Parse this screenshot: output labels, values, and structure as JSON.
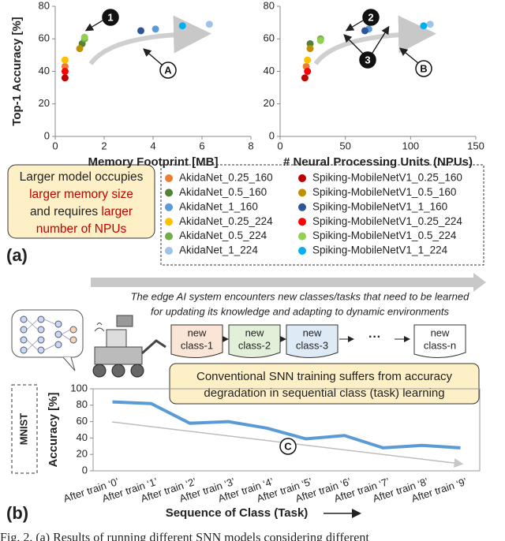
{
  "chart_data": [
    {
      "type": "scatter",
      "ylabel": "Top-1 Accuracy [%]",
      "xlabel": "Memory Footprint [MB]",
      "xlim": [
        0,
        8
      ],
      "xticks": [
        0,
        2,
        4,
        6,
        8
      ],
      "ylim": [
        0,
        80
      ],
      "yticks": [
        0,
        20,
        40,
        60,
        80
      ],
      "annotations": [
        "1",
        "A"
      ],
      "series": [
        {
          "name": "AkidaNet_0.25_160",
          "color": "#ed7d31",
          "x": [
            0.4
          ],
          "values": [
            43
          ]
        },
        {
          "name": "AkidaNet_0.5_160",
          "color": "#548235",
          "x": [
            1.1
          ],
          "values": [
            57
          ]
        },
        {
          "name": "AkidaNet_1_160",
          "color": "#5b9bd5",
          "x": [
            4.1
          ],
          "values": [
            66
          ]
        },
        {
          "name": "AkidaNet_0.25_224",
          "color": "#ffc000",
          "x": [
            0.4
          ],
          "values": [
            47
          ]
        },
        {
          "name": "AkidaNet_0.5_224",
          "color": "#70ad47",
          "x": [
            1.2
          ],
          "values": [
            60
          ]
        },
        {
          "name": "AkidaNet_1_224",
          "color": "#9dc3e6",
          "x": [
            6.3
          ],
          "values": [
            69
          ]
        },
        {
          "name": "Spiking-MobileNetV1_0.25_160",
          "color": "#c00000",
          "x": [
            0.4
          ],
          "values": [
            36
          ]
        },
        {
          "name": "Spiking-MobileNetV1_0.5_160",
          "color": "#bf9000",
          "x": [
            1.0
          ],
          "values": [
            54
          ]
        },
        {
          "name": "Spiking-MobileNetV1_1_160",
          "color": "#2f5597",
          "x": [
            3.5
          ],
          "values": [
            65
          ]
        },
        {
          "name": "Spiking-MobileNetV1_0.25_224",
          "color": "#ff0000",
          "x": [
            0.4
          ],
          "values": [
            40
          ]
        },
        {
          "name": "Spiking-MobileNetV1_0.5_224",
          "color": "#92d050",
          "x": [
            1.2
          ],
          "values": [
            61
          ]
        },
        {
          "name": "Spiking-MobileNetV1_1_224",
          "color": "#00b0f0",
          "x": [
            5.2
          ],
          "values": [
            68
          ]
        }
      ]
    },
    {
      "type": "scatter",
      "xlabel": "# Neural Processing Units (NPUs)",
      "xlim": [
        0,
        150
      ],
      "xticks": [
        0,
        50,
        100,
        150
      ],
      "ylim": [
        0,
        80
      ],
      "yticks": [
        0,
        20,
        40,
        60,
        80
      ],
      "annotations": [
        "2",
        "3",
        "B"
      ],
      "series": [
        {
          "x": [
            20
          ],
          "values": [
            43
          ]
        },
        {
          "x": [
            23
          ],
          "values": [
            57
          ]
        },
        {
          "x": [
            68
          ],
          "values": [
            66
          ]
        },
        {
          "x": [
            21
          ],
          "values": [
            47
          ]
        },
        {
          "x": [
            31
          ],
          "values": [
            60
          ]
        },
        {
          "x": [
            115
          ],
          "values": [
            69
          ]
        },
        {
          "x": [
            19
          ],
          "values": [
            36
          ]
        },
        {
          "x": [
            23
          ],
          "values": [
            54
          ]
        },
        {
          "x": [
            65
          ],
          "values": [
            65
          ]
        },
        {
          "x": [
            21
          ],
          "values": [
            40
          ]
        },
        {
          "x": [
            31
          ],
          "values": [
            59
          ]
        },
        {
          "x": [
            110
          ],
          "values": [
            68
          ]
        }
      ]
    },
    {
      "type": "line",
      "ylabel": "Accuracy [%]",
      "xlabel": "Sequence of Class (Task)",
      "ylim": [
        0,
        100
      ],
      "yticks": [
        0,
        20,
        40,
        60,
        80,
        100
      ],
      "categories": [
        "After train ‘0’",
        "After train ‘1’",
        "After train ‘2’",
        "After train ‘3’",
        "After train ‘4’",
        "After train ‘5’",
        "After train ‘6’",
        "After train ‘7’",
        "After train ‘8’",
        "After train ‘9’"
      ],
      "annotations": [
        "C"
      ],
      "series": [
        {
          "color": "#5b9bd5",
          "values": [
            84,
            82,
            58,
            60,
            52,
            39,
            43,
            28,
            31,
            28
          ]
        }
      ]
    }
  ],
  "panel_a": {
    "label": "(a)",
    "note": [
      "Larger model occupies",
      "larger memory size",
      "and requires ",
      "larger",
      "number of NPUs"
    ]
  },
  "panel_b": {
    "label": "(b)",
    "banner": [
      "The edge AI system encounters new classes/tasks that need to be learned",
      "for updating its knowledge and adapting to dynamic environments"
    ],
    "classes": [
      [
        "new",
        "class-1"
      ],
      [
        "new",
        "class-2"
      ],
      [
        "new",
        "class-3"
      ],
      [
        "new",
        "class-n"
      ]
    ],
    "ellipsis": "···",
    "problem": [
      "Conventional SNN training suffers from accuracy",
      "degradation in sequential class (task) learning"
    ],
    "dataset": "MNIST"
  },
  "caption": "Fig. 2.   (a) Results of running different SNN models considering different"
}
